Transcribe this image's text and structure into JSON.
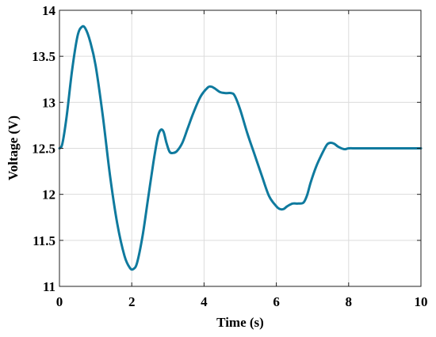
{
  "chart_data": {
    "type": "line",
    "title": "",
    "xlabel": "Time (s)",
    "ylabel": "Voltage (V)",
    "xlim": [
      0,
      10
    ],
    "ylim": [
      11,
      14
    ],
    "xticks": [
      0,
      2,
      4,
      6,
      8,
      10
    ],
    "yticks": [
      11,
      11.5,
      12,
      12.5,
      13,
      13.5,
      14
    ],
    "xtick_labels": [
      "0",
      "2",
      "4",
      "6",
      "8",
      "10"
    ],
    "ytick_labels": [
      "11",
      "11.5",
      "12",
      "12.5",
      "13",
      "13.5",
      "14"
    ],
    "grid": true,
    "legend": "none",
    "series": [
      {
        "color": "#0f7a9e",
        "x": [
          0,
          0.08,
          0.2,
          0.35,
          0.5,
          0.62,
          0.72,
          0.85,
          1.0,
          1.2,
          1.4,
          1.6,
          1.8,
          1.95,
          2.05,
          2.15,
          2.3,
          2.45,
          2.6,
          2.72,
          2.8,
          2.88,
          2.96,
          3.05,
          3.15,
          3.25,
          3.4,
          3.55,
          3.7,
          3.9,
          4.1,
          4.2,
          4.3,
          4.45,
          4.6,
          4.75,
          4.85,
          5.0,
          5.2,
          5.4,
          5.6,
          5.8,
          6.0,
          6.1,
          6.2,
          6.3,
          6.45,
          6.6,
          6.75,
          6.85,
          6.95,
          7.1,
          7.25,
          7.4,
          7.5,
          7.6,
          7.7,
          7.8,
          7.9,
          8.0,
          8.2,
          8.5,
          9.0,
          9.5,
          10.0
        ],
        "y": [
          12.5,
          12.55,
          12.85,
          13.35,
          13.72,
          13.82,
          13.8,
          13.66,
          13.4,
          12.85,
          12.2,
          11.68,
          11.33,
          11.2,
          11.19,
          11.26,
          11.55,
          11.95,
          12.35,
          12.62,
          12.7,
          12.68,
          12.56,
          12.46,
          12.45,
          12.47,
          12.56,
          12.72,
          12.88,
          13.06,
          13.16,
          13.17,
          13.15,
          13.11,
          13.1,
          13.1,
          13.07,
          12.92,
          12.66,
          12.43,
          12.2,
          11.98,
          11.87,
          11.84,
          11.84,
          11.87,
          11.9,
          11.9,
          11.91,
          11.99,
          12.13,
          12.3,
          12.43,
          12.54,
          12.56,
          12.55,
          12.52,
          12.5,
          12.49,
          12.5,
          12.5,
          12.5,
          12.5,
          12.5,
          12.5
        ]
      }
    ]
  }
}
